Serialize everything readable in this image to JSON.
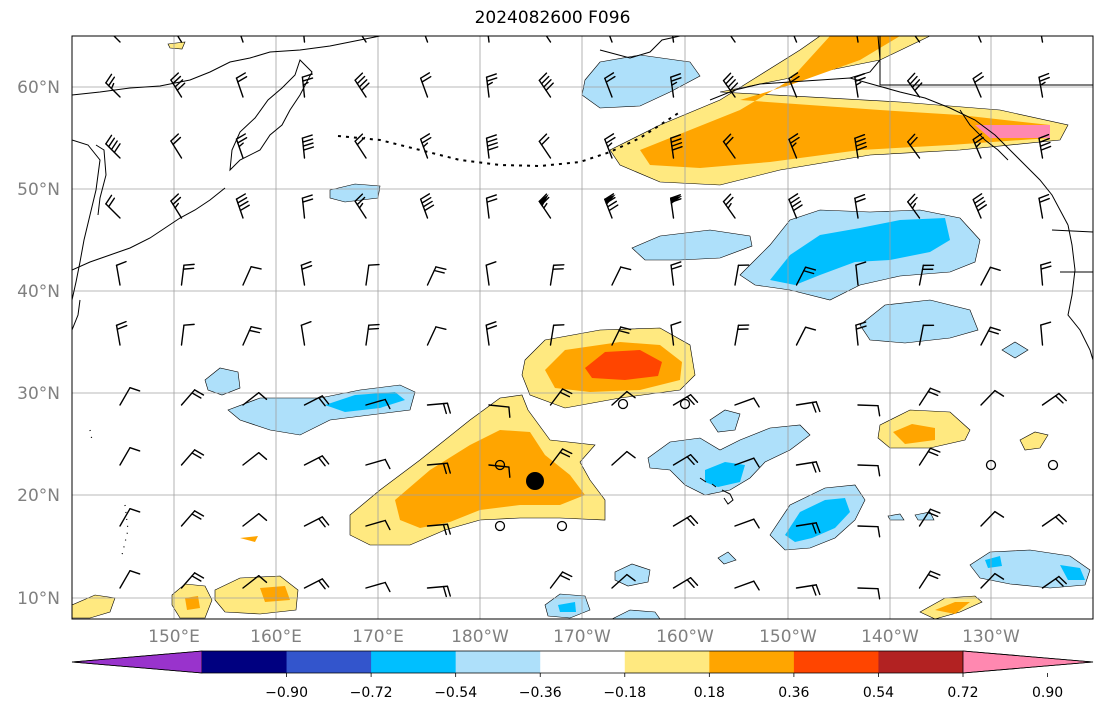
{
  "title": "2024082600 F096",
  "map": {
    "lat_labels": [
      "60°N",
      "50°N",
      "40°N",
      "30°N",
      "20°N",
      "10°N"
    ],
    "lon_labels": [
      "150°E",
      "160°E",
      "170°E",
      "180°W",
      "170°W",
      "160°W",
      "150°W",
      "140°W",
      "130°W"
    ],
    "grid": true,
    "storm_marker": {
      "type": "filled-circle",
      "color": "#000000"
    },
    "calm_marker": {
      "type": "open-circle",
      "color": "#000000"
    },
    "coastline_color": "#000000"
  },
  "colorbar": {
    "colors": [
      "#9933cc",
      "#000080",
      "#3355cc",
      "#00bfff",
      "#aee0fa",
      "#ffffff",
      "#ffe980",
      "#ffa500",
      "#ff4500",
      "#b22222",
      "#ff88b0"
    ],
    "tick_labels": [
      "−0.90",
      "−0.72",
      "−0.54",
      "−0.36",
      "−0.18",
      "0.18",
      "0.36",
      "0.54",
      "0.72",
      "0.90"
    ]
  }
}
